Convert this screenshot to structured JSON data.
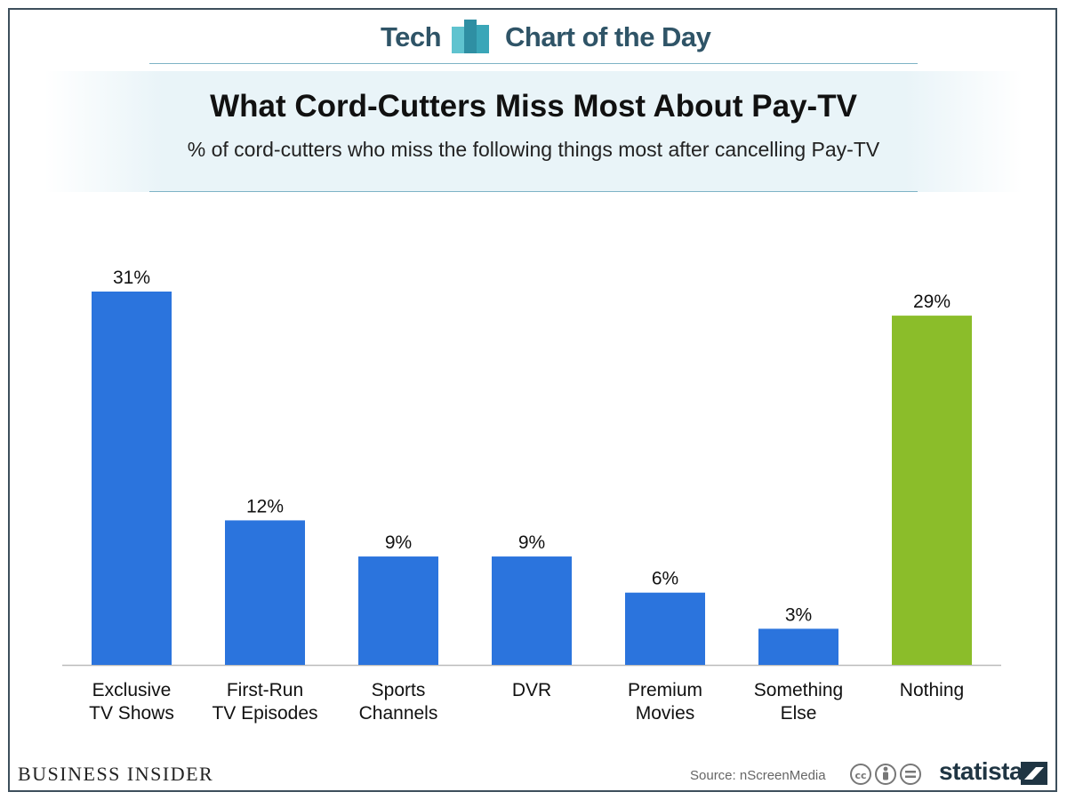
{
  "header": {
    "brand_left": "Tech",
    "brand_right": "Chart of the Day",
    "logo_icon": "bar-chart-logo-icon"
  },
  "colors": {
    "primary_bar": "#2b74dd",
    "highlight_bar": "#8bbd2a",
    "heading": "#2f5467",
    "rule": "#7fb3c6"
  },
  "chart_data": {
    "type": "bar",
    "title": "What Cord-Cutters Miss Most About Pay-TV",
    "subtitle": "% of cord-cutters who miss the following things most after cancelling Pay-TV",
    "categories": [
      [
        "Exclusive",
        "TV Shows"
      ],
      [
        "First-Run",
        "TV Episodes"
      ],
      [
        "Sports",
        "Channels"
      ],
      [
        "DVR"
      ],
      [
        "Premium",
        "Movies"
      ],
      [
        "Something",
        "Else"
      ],
      [
        "Nothing"
      ]
    ],
    "values": [
      31,
      12,
      9,
      9,
      6,
      3,
      29
    ],
    "data_labels": [
      "31%",
      "12%",
      "9%",
      "9%",
      "6%",
      "3%",
      "29%"
    ],
    "highlight_index": 6,
    "ylim": [
      0,
      31
    ],
    "grid": false,
    "legend": "none"
  },
  "footer": {
    "publisher": "BUSINESS INSIDER",
    "source": "Source: nScreenMedia",
    "license_icons": [
      "creative-commons-icon",
      "attribution-icon",
      "no-derivatives-icon"
    ],
    "provider": "statista"
  }
}
